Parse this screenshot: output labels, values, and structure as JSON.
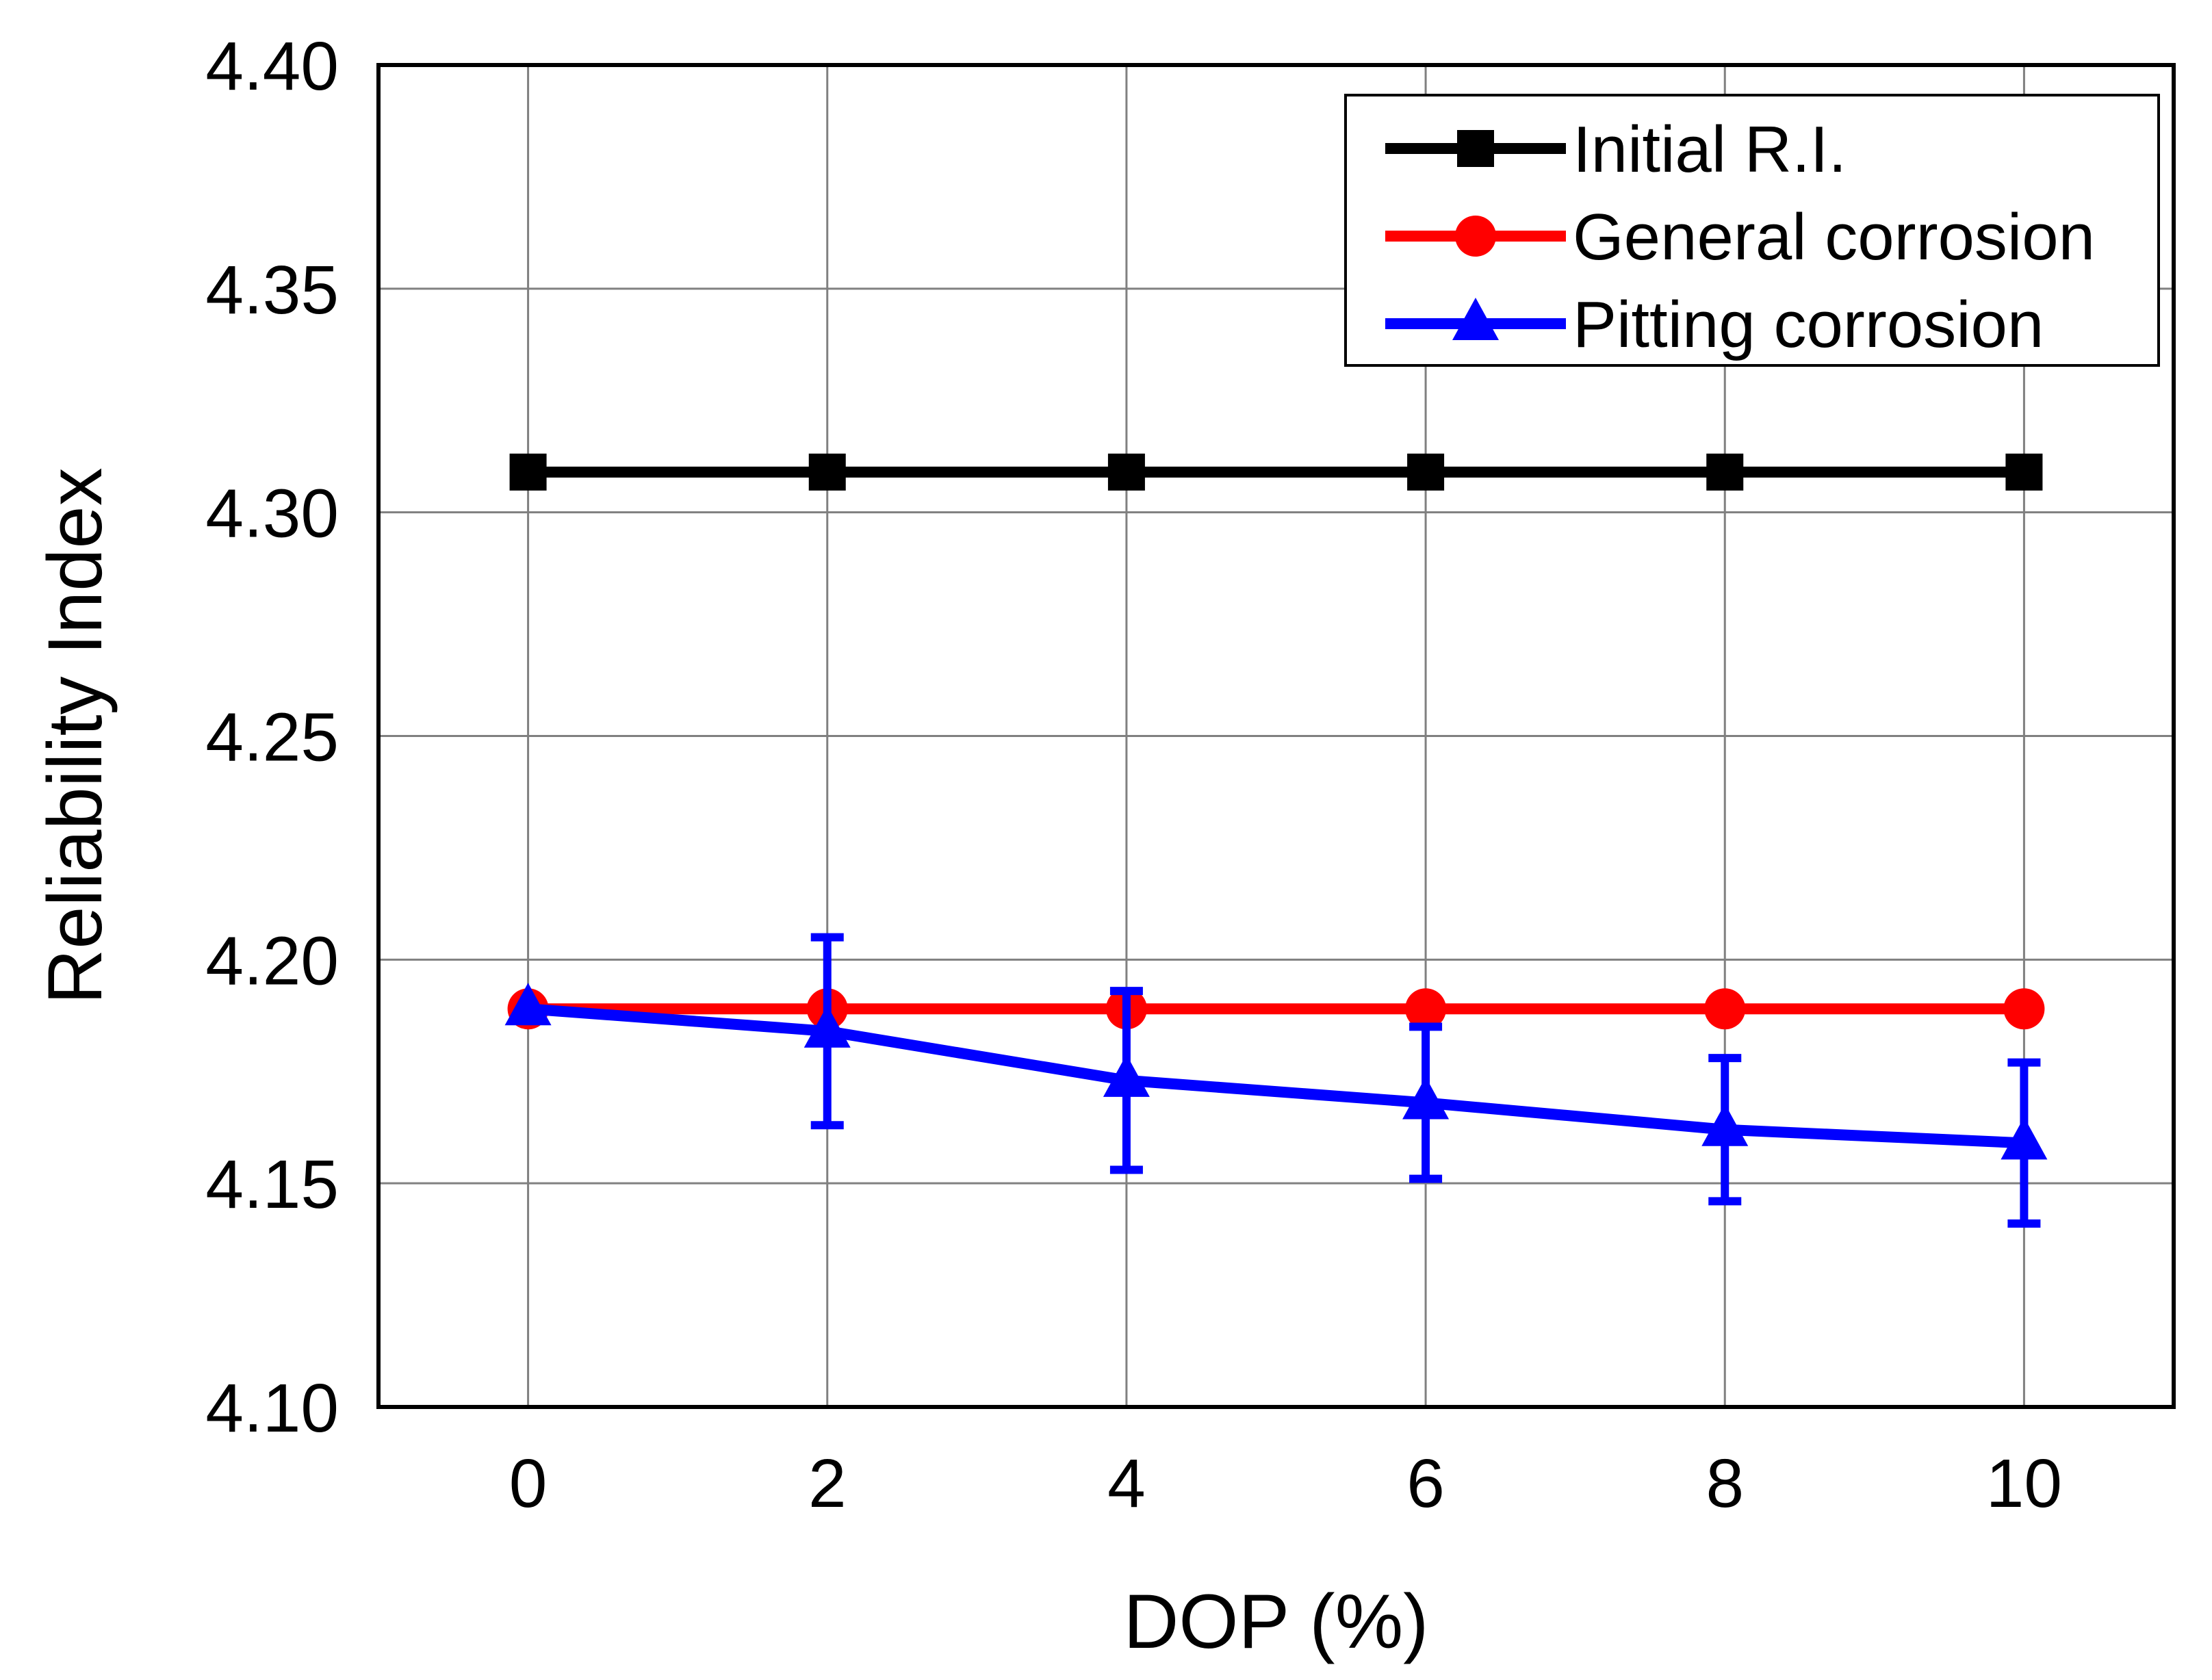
{
  "chart_data": {
    "type": "line",
    "title": "",
    "xlabel": "DOP (%)",
    "ylabel": "Reliability Index",
    "x": [
      0,
      2,
      4,
      6,
      8,
      10
    ],
    "xlim": [
      -1,
      11
    ],
    "ylim": [
      4.1,
      4.4
    ],
    "x_ticks": [
      0,
      2,
      4,
      6,
      8,
      10
    ],
    "x_tick_labels": [
      "0",
      "2",
      "4",
      "6",
      "8",
      "10"
    ],
    "y_ticks": [
      4.1,
      4.15,
      4.2,
      4.25,
      4.3,
      4.35,
      4.4
    ],
    "y_tick_labels": [
      "4.10",
      "4.15",
      "4.20",
      "4.25",
      "4.30",
      "4.35",
      "4.40"
    ],
    "grid": true,
    "legend_position": "top-right",
    "series": [
      {
        "name": "Initial R.I.",
        "color": "#000000",
        "marker": "square",
        "values": [
          4.309,
          4.309,
          4.309,
          4.309,
          4.309,
          4.309
        ]
      },
      {
        "name": "General corrosion",
        "color": "#ff0000",
        "marker": "circle",
        "values": [
          4.189,
          4.189,
          4.189,
          4.189,
          4.189,
          4.189
        ]
      },
      {
        "name": "Pitting corrosion",
        "color": "#0000ff",
        "marker": "triangle",
        "values": [
          4.189,
          4.184,
          4.173,
          4.168,
          4.162,
          4.159
        ],
        "error_low": [
          4.189,
          4.163,
          4.153,
          4.151,
          4.146,
          4.141
        ],
        "error_high": [
          4.189,
          4.205,
          4.193,
          4.185,
          4.178,
          4.177
        ]
      }
    ]
  }
}
